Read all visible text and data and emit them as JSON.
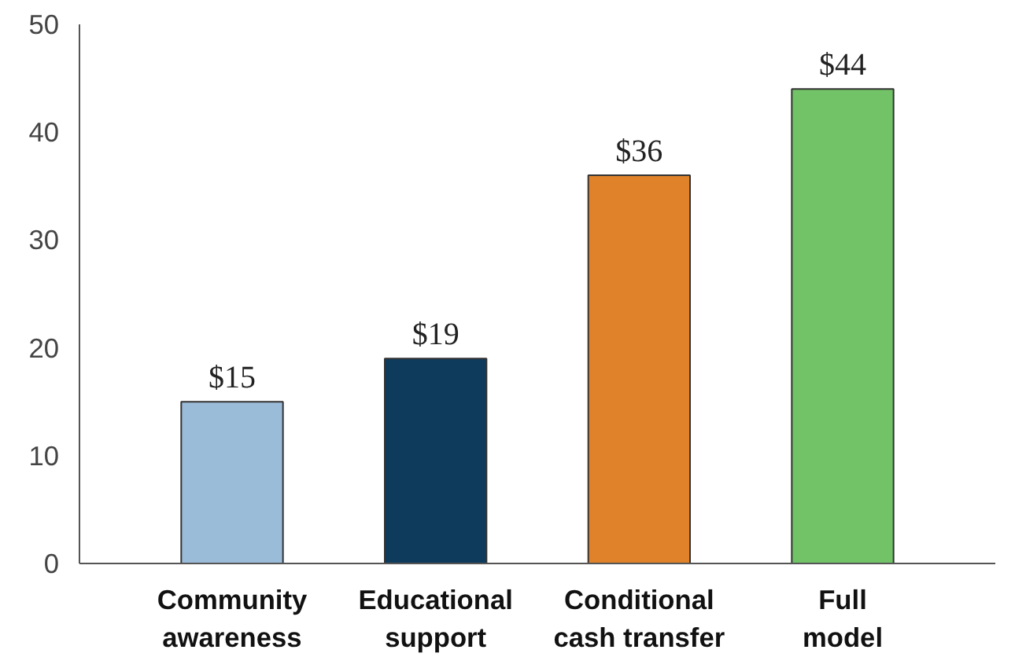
{
  "chart_data": {
    "type": "bar",
    "categories": [
      "Community awareness",
      "Educational support",
      "Conditional cash transfer",
      "Full model"
    ],
    "values": [
      15,
      19,
      36,
      44
    ],
    "colors": [
      "#9bbcd9",
      "#0e3a5c",
      "#e0822a",
      "#72c267"
    ],
    "value_labels": [
      "$15",
      "$19",
      "$36",
      "$44"
    ],
    "ylim": [
      0,
      50
    ],
    "yticks": [
      0,
      10,
      20,
      30,
      40,
      50
    ],
    "grid": false
  }
}
